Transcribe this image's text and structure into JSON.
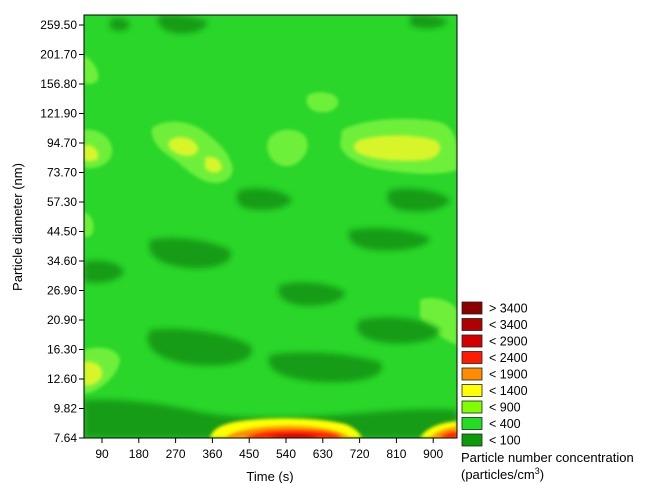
{
  "chart_data": {
    "type": "heatmap",
    "title": "",
    "xlabel": "Time (s)",
    "ylabel": "Particle diameter (nm)",
    "x_ticks": [
      "90",
      "180",
      "270",
      "360",
      "450",
      "540",
      "630",
      "720",
      "810",
      "900"
    ],
    "y_ticks": [
      "259.50",
      "201.70",
      "156.80",
      "121.90",
      "94.70",
      "73.70",
      "57.30",
      "44.50",
      "34.60",
      "26.90",
      "20.90",
      "16.30",
      "12.60",
      "9.82",
      "7.64"
    ],
    "legend": {
      "title_line1": "Particle number concentration",
      "title_line2_prefix": "(particles/cm",
      "title_line2_sup": "3",
      "title_line2_suffix": ")",
      "placement": "bottom-right",
      "entries": [
        {
          "label": "> 3400",
          "color": "#8b0000"
        },
        {
          "label": "< 3400",
          "color": "#b00000"
        },
        {
          "label": "< 2900",
          "color": "#d40000"
        },
        {
          "label": "< 2400",
          "color": "#ff1a00"
        },
        {
          "label": "< 1900",
          "color": "#ff8c00"
        },
        {
          "label": "< 1400",
          "color": "#ffff00"
        },
        {
          "label": "< 900",
          "color": "#7fff00"
        },
        {
          "label": "< 400",
          "color": "#22dd22"
        },
        {
          "label": "< 100",
          "color": "#0a9a0a"
        }
      ]
    }
  }
}
